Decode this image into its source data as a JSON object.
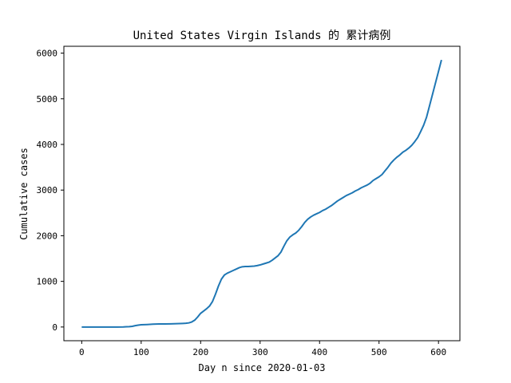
{
  "chart_data": {
    "type": "line",
    "title": "United States Virgin Islands 的 累计病例",
    "xlabel": "Day n since 2020-01-03",
    "ylabel": "Cumulative cases",
    "xlim": [
      -30,
      636
    ],
    "ylim": [
      -300,
      6150
    ],
    "xticks": [
      0,
      100,
      200,
      300,
      400,
      500,
      600
    ],
    "yticks": [
      0,
      1000,
      2000,
      3000,
      4000,
      5000,
      6000
    ],
    "grid": false,
    "series": [
      {
        "color": "#1f77b4",
        "x": [
          0,
          20,
          40,
          60,
          70,
          75,
          80,
          85,
          90,
          95,
          100,
          110,
          120,
          130,
          140,
          150,
          160,
          170,
          175,
          180,
          185,
          190,
          195,
          200,
          205,
          210,
          215,
          220,
          225,
          230,
          235,
          240,
          245,
          250,
          255,
          260,
          265,
          270,
          275,
          280,
          285,
          290,
          295,
          300,
          305,
          310,
          315,
          320,
          325,
          330,
          335,
          340,
          345,
          350,
          355,
          360,
          365,
          370,
          375,
          380,
          385,
          390,
          395,
          400,
          405,
          410,
          415,
          420,
          425,
          430,
          435,
          440,
          445,
          450,
          455,
          460,
          465,
          470,
          475,
          480,
          485,
          490,
          495,
          500,
          505,
          510,
          515,
          520,
          525,
          530,
          535,
          540,
          545,
          550,
          555,
          560,
          565,
          570,
          575,
          580,
          585,
          590,
          595,
          600,
          605
        ],
        "y": [
          0,
          0,
          0,
          0,
          2,
          5,
          8,
          15,
          30,
          40,
          50,
          55,
          62,
          66,
          68,
          70,
          73,
          78,
          82,
          90,
          110,
          150,
          220,
          300,
          350,
          400,
          460,
          560,
          720,
          900,
          1050,
          1140,
          1180,
          1210,
          1240,
          1270,
          1300,
          1320,
          1325,
          1325,
          1330,
          1335,
          1345,
          1360,
          1380,
          1400,
          1420,
          1460,
          1510,
          1560,
          1640,
          1770,
          1890,
          1970,
          2020,
          2060,
          2120,
          2200,
          2290,
          2360,
          2410,
          2450,
          2480,
          2510,
          2550,
          2580,
          2620,
          2660,
          2710,
          2760,
          2800,
          2840,
          2880,
          2910,
          2940,
          2980,
          3010,
          3050,
          3080,
          3110,
          3150,
          3210,
          3250,
          3290,
          3340,
          3420,
          3500,
          3590,
          3660,
          3720,
          3770,
          3830,
          3870,
          3920,
          3980,
          4060,
          4150,
          4280,
          4420,
          4600,
          4850,
          5100,
          5350,
          5600,
          5850
        ]
      }
    ]
  }
}
